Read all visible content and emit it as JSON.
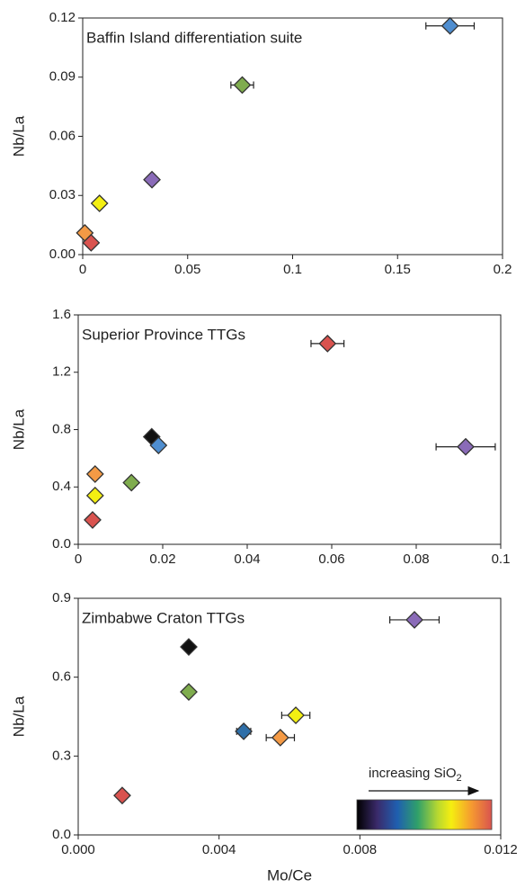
{
  "chart_data": [
    {
      "type": "scatter",
      "title": "Baffin Island differentiation suite",
      "y_label": "Nb/La",
      "x": [
        0.175,
        0.076,
        0.033,
        0.008,
        0.001,
        0.004
      ],
      "values": [
        0.116,
        0.086,
        0.038,
        0.026,
        0.011,
        0.006
      ],
      "xerr": [
        0.0115,
        0.0054,
        null,
        null,
        null,
        null
      ],
      "colors": [
        "#4f8ed0",
        "#7fac4e",
        "#8a6bb8",
        "#f3ef12",
        "#f49a45",
        "#d9534f"
      ],
      "xlim": [
        0,
        0.2
      ],
      "xticks": [
        0,
        0.05,
        0.1,
        0.15,
        0.2
      ],
      "ylim": [
        0,
        0.12
      ],
      "yticks": [
        {
          "value": 0,
          "label": "0.00"
        },
        0.03,
        0.06,
        0.09,
        0.12
      ]
    },
    {
      "type": "scatter",
      "title": "Superior Province TTGs",
      "y_label": "Nb/La",
      "x": [
        0.059,
        0.0917,
        0.0174,
        0.019,
        0.004,
        0.0126,
        0.004,
        0.0034
      ],
      "values": [
        1.4,
        0.68,
        0.75,
        0.69,
        0.49,
        0.43,
        0.34,
        0.17
      ],
      "xerr": [
        0.0039,
        0.007,
        null,
        null,
        null,
        null,
        null,
        null
      ],
      "colors": [
        "#d9534f",
        "#8a6bb8",
        "#111111",
        "#4f8ed0",
        "#f49a45",
        "#7fac4e",
        "#f3ef12",
        "#d9534f"
      ],
      "xlim": [
        0,
        0.1
      ],
      "xticks": [
        0,
        0.02,
        0.04,
        0.06,
        0.08,
        0.1
      ],
      "ylim": [
        0,
        1.6
      ],
      "yticks": [
        {
          "value": 0,
          "label": "0.0"
        },
        0.4,
        0.8,
        1.2,
        1.6
      ]
    },
    {
      "type": "scatter",
      "title": "Zimbabwe Craton TTGs",
      "y_label": "Nb/La",
      "x_label": "Mo/Ce",
      "x": [
        0.00955,
        0.00314,
        0.00314,
        0.0047,
        0.00618,
        0.00574,
        0.00125
      ],
      "values": [
        0.818,
        0.715,
        0.544,
        0.394,
        0.455,
        0.37,
        0.15
      ],
      "xerr": [
        0.0007,
        0.0001,
        null,
        0.0002,
        0.0004,
        0.0004,
        null
      ],
      "colors": [
        "#8a6bb8",
        "#111111",
        "#7fac4e",
        "#2f6fa8",
        "#f3ef12",
        "#f49a45",
        "#d9534f"
      ],
      "xlim": [
        0,
        0.012
      ],
      "xticks": [
        {
          "value": 0,
          "label": "0.000"
        },
        0.004,
        0.008,
        0.012
      ],
      "ylim": [
        0,
        0.9
      ],
      "yticks": [
        {
          "value": 0,
          "label": "0.0"
        },
        0.3,
        0.6,
        0.9
      ],
      "colorbar": {
        "label": "increasing SiO",
        "subscript": "2"
      }
    }
  ]
}
